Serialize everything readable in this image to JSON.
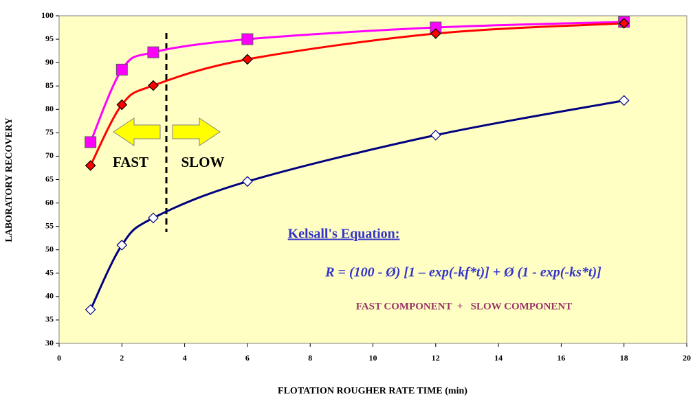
{
  "chart_data": {
    "type": "line",
    "x_label": "FLOTATION ROUGHER RATE TIME (min)",
    "y_label": "LABORATORY RECOVERY",
    "xlim": [
      0,
      20
    ],
    "xticks": [
      0,
      2,
      4,
      6,
      8,
      10,
      12,
      14,
      16,
      18,
      20
    ],
    "ylim": [
      30,
      100
    ],
    "yticks": [
      30,
      35,
      40,
      45,
      50,
      55,
      60,
      65,
      70,
      75,
      80,
      85,
      90,
      95,
      100
    ],
    "x": [
      1,
      2,
      3,
      6,
      12,
      18
    ],
    "series": [
      {
        "color": "#ff00ff",
        "marker": "square",
        "values": [
          73,
          88.5,
          92.2,
          95,
          97.5,
          98.7
        ]
      },
      {
        "color": "#ff0000",
        "marker": "diamond",
        "values": [
          68,
          81,
          85.1,
          90.7,
          96.2,
          98.4
        ]
      },
      {
        "color": "#000080",
        "marker": "open-diamond",
        "values": [
          37.2,
          51,
          56.8,
          64.6,
          74.5,
          81.9
        ]
      }
    ],
    "annotations": {
      "fast": "FAST",
      "slow": "SLOW",
      "equation_title": "Kelsall's Equation:",
      "equation": "R = (100 - Ø) [1 – exp(-kf*t)] + Ø (1 - exp(-ks*t)]",
      "components": "FAST COMPONENT  +   SLOW COMPONENT"
    }
  }
}
